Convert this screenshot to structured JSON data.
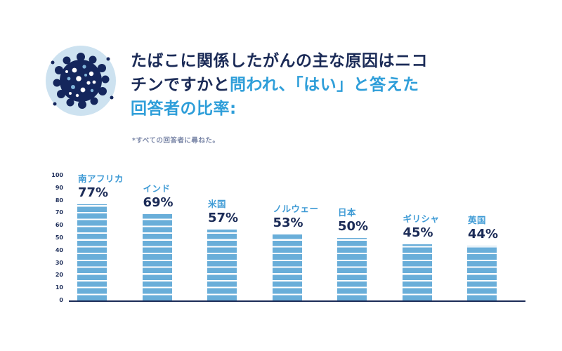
{
  "header": {
    "title_line1_dark": "たばこに関係したがんの主な原因はニコ",
    "title_line2_dark": "チンですかと",
    "title_line2_blue": "問われ、「はい」と答えた",
    "title_line3_blue": "回答者の比率:",
    "footnote": "*すべての回答者に尋ねた。"
  },
  "icon": {
    "name": "cancer-cell-icon"
  },
  "colors": {
    "navy": "#1b2b57",
    "blue_text": "#2e9ed9",
    "bar_blue": "#69aed9",
    "icon_bg": "#cde2f0",
    "footnote_gray": "#7b87a8"
  },
  "chart_data": {
    "type": "bar",
    "categories": [
      "南アフリカ",
      "インド",
      "米国",
      "ノルウェー",
      "日本",
      "ギリシャ",
      "英国"
    ],
    "values": [
      77,
      69,
      57,
      53,
      50,
      45,
      44
    ],
    "value_labels": [
      "77%",
      "69%",
      "57%",
      "53%",
      "50%",
      "45%",
      "44%"
    ],
    "title": "たばこに関係したがんの主な原因はニコチンですかと問われ、「はい」と答えた回答者の比率:",
    "xlabel": "",
    "ylabel": "",
    "ylim": [
      0,
      100
    ],
    "ytick_step": 10,
    "grid": false,
    "legend": false
  }
}
